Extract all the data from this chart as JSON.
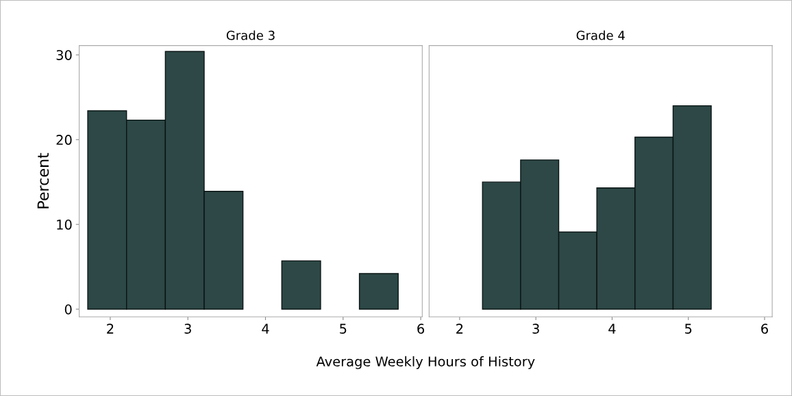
{
  "chart_data": [
    {
      "type": "histogram",
      "title": "Grade 3",
      "xlabel": "Average Weekly Hours of History",
      "ylabel": "Percent",
      "bins": [
        1.71,
        2.21,
        2.71,
        3.21,
        3.71,
        4.21,
        4.71,
        5.21,
        5.71
      ],
      "values": [
        23.4,
        22.3,
        30.4,
        13.9,
        0,
        5.7,
        0,
        4.2
      ],
      "color": "#2d4846",
      "xlim": [
        1.6,
        6.02
      ],
      "xticks": [
        2,
        3,
        4,
        5,
        6
      ],
      "ylim": [
        -0.9,
        31.1
      ],
      "yticks": [
        0,
        10,
        20,
        30
      ],
      "grid": false
    },
    {
      "type": "histogram",
      "title": "Grade 4",
      "bins": [
        2.3,
        2.8,
        3.3,
        3.8,
        4.3,
        4.8,
        5.3
      ],
      "values": [
        15.0,
        17.6,
        9.1,
        14.3,
        20.3,
        24.0
      ],
      "color": "#2d4846",
      "xlim": [
        1.6,
        6.1
      ],
      "xticks": [
        2,
        3,
        4,
        5,
        6
      ],
      "ylim": [
        -0.9,
        31.1
      ],
      "yticks": [
        0,
        10,
        20,
        30
      ],
      "tick_labels": "x",
      "grid": false
    }
  ]
}
